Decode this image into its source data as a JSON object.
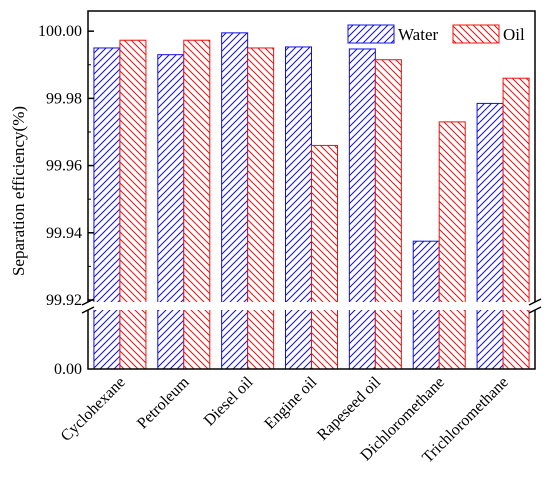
{
  "chart_data": {
    "type": "bar",
    "title": "",
    "xlabel": "",
    "ylabel": "Separation efficiency(%)",
    "categories": [
      "Cyclohexane",
      "Petroleum",
      "Diesel oil",
      "Engine oil",
      "Rapeseed oil",
      "Dichloromethane",
      "Trichloromethane"
    ],
    "series": [
      {
        "name": "Water",
        "color": "#1010e0",
        "values": [
          99.995,
          99.993,
          99.9995,
          99.9953,
          99.9947,
          99.9375,
          99.9785
        ]
      },
      {
        "name": "Oil",
        "color": "#ee1111",
        "values": [
          99.9973,
          99.9973,
          99.995,
          99.966,
          99.9915,
          99.973,
          99.986
        ]
      }
    ],
    "broken_axis": {
      "lower_range": [
        0.0,
        99.92
      ],
      "upper_range": [
        99.92,
        100.006
      ],
      "lower_ticks": [
        "0.00"
      ],
      "upper_ticks": [
        "99.92",
        "99.94",
        "99.96",
        "99.98",
        "100.00"
      ]
    },
    "legend_position": "top-right",
    "grid": false,
    "pattern": "diagonal-hatch"
  }
}
